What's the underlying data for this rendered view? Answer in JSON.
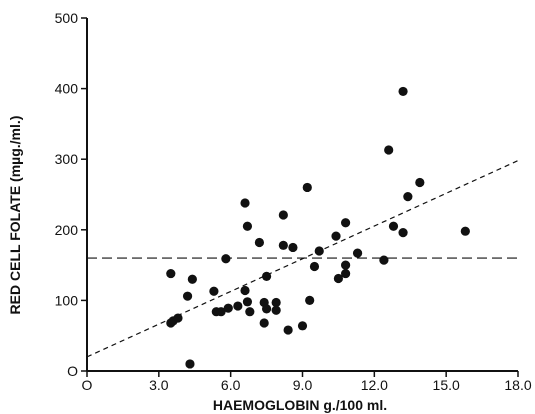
{
  "chart_data": {
    "type": "scatter",
    "xlabel": "HAEMOGLOBIN g./100 ml.",
    "ylabel": "RED CELL FOLATE (mµg./ml.)",
    "xlim": [
      0,
      18
    ],
    "ylim": [
      0,
      500
    ],
    "x_ticks": [
      {
        "value": 0,
        "label": "O"
      },
      {
        "value": 3,
        "label": "3.0"
      },
      {
        "value": 6,
        "label": "6.0"
      },
      {
        "value": 9,
        "label": "9.0"
      },
      {
        "value": 12,
        "label": "12.0"
      },
      {
        "value": 15,
        "label": "15.0"
      },
      {
        "value": 18,
        "label": "18.0"
      }
    ],
    "y_ticks": [
      {
        "value": 0,
        "label": "O"
      },
      {
        "value": 100,
        "label": "100"
      },
      {
        "value": 200,
        "label": "200"
      },
      {
        "value": 300,
        "label": "300"
      },
      {
        "value": 400,
        "label": "400"
      },
      {
        "value": 500,
        "label": "500"
      }
    ],
    "grid": false,
    "marker_color": "#111111",
    "points": [
      {
        "x": 3.5,
        "y": 138
      },
      {
        "x": 3.5,
        "y": 68
      },
      {
        "x": 3.6,
        "y": 71
      },
      {
        "x": 3.8,
        "y": 75
      },
      {
        "x": 4.2,
        "y": 106
      },
      {
        "x": 4.3,
        "y": 10
      },
      {
        "x": 4.4,
        "y": 130
      },
      {
        "x": 5.3,
        "y": 113
      },
      {
        "x": 5.4,
        "y": 84
      },
      {
        "x": 5.6,
        "y": 84
      },
      {
        "x": 5.8,
        "y": 159
      },
      {
        "x": 5.9,
        "y": 89
      },
      {
        "x": 6.3,
        "y": 92
      },
      {
        "x": 6.6,
        "y": 238
      },
      {
        "x": 6.6,
        "y": 114
      },
      {
        "x": 6.7,
        "y": 205
      },
      {
        "x": 6.7,
        "y": 98
      },
      {
        "x": 6.8,
        "y": 84
      },
      {
        "x": 7.2,
        "y": 182
      },
      {
        "x": 7.4,
        "y": 97
      },
      {
        "x": 7.4,
        "y": 68
      },
      {
        "x": 7.5,
        "y": 134
      },
      {
        "x": 7.5,
        "y": 88
      },
      {
        "x": 7.9,
        "y": 97
      },
      {
        "x": 7.9,
        "y": 86
      },
      {
        "x": 8.2,
        "y": 221
      },
      {
        "x": 8.2,
        "y": 178
      },
      {
        "x": 8.4,
        "y": 58
      },
      {
        "x": 8.6,
        "y": 175
      },
      {
        "x": 9.0,
        "y": 64
      },
      {
        "x": 9.2,
        "y": 260
      },
      {
        "x": 9.3,
        "y": 100
      },
      {
        "x": 9.5,
        "y": 148
      },
      {
        "x": 9.7,
        "y": 170
      },
      {
        "x": 10.4,
        "y": 191
      },
      {
        "x": 10.5,
        "y": 131
      },
      {
        "x": 10.8,
        "y": 210
      },
      {
        "x": 10.8,
        "y": 150
      },
      {
        "x": 10.8,
        "y": 138
      },
      {
        "x": 11.3,
        "y": 167
      },
      {
        "x": 12.4,
        "y": 157
      },
      {
        "x": 12.6,
        "y": 313
      },
      {
        "x": 12.8,
        "y": 205
      },
      {
        "x": 13.2,
        "y": 396
      },
      {
        "x": 13.2,
        "y": 196
      },
      {
        "x": 13.4,
        "y": 247
      },
      {
        "x": 13.9,
        "y": 267
      },
      {
        "x": 15.8,
        "y": 198
      }
    ],
    "lines": [
      {
        "style": "dashed",
        "x": [
          0,
          18
        ],
        "y": [
          20,
          298
        ]
      },
      {
        "style": "long-dashed",
        "x": [
          0,
          18
        ],
        "y": [
          160,
          160
        ]
      }
    ]
  }
}
